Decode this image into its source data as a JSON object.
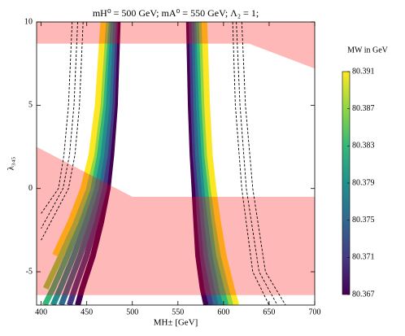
{
  "chart_data": {
    "type": "contour",
    "title": "mH⁰ = 500 GeV; mA⁰ = 550 GeV; Λ₂ = 1;",
    "x_label": "MH± [GeV]",
    "y_label": "λ₃₄₅",
    "xlim": [
      395,
      700
    ],
    "ylim": [
      -7,
      10
    ],
    "xticks": [
      400,
      450,
      500,
      550,
      600,
      650,
      700
    ],
    "yticks": [
      -5,
      0,
      5,
      10
    ],
    "contour_y": [
      10,
      5,
      2,
      0,
      -2,
      -4,
      -6,
      -7
    ],
    "contours": [
      {
        "color": "#440154",
        "left_x": [
          484,
          481,
          477,
          473,
          466,
          457,
          445,
          440
        ],
        "right_x": [
          562,
          564,
          566,
          568,
          570,
          572,
          577,
          581
        ]
      },
      {
        "color": "#443a83",
        "left_x": [
          481,
          478,
          473,
          469,
          460,
          450,
          437,
          431
        ],
        "right_x": [
          565,
          567,
          569,
          572,
          574,
          577,
          582,
          587
        ]
      },
      {
        "color": "#31688e",
        "left_x": [
          479,
          475,
          470,
          464,
          455,
          443,
          429,
          422
        ],
        "right_x": [
          568,
          570,
          572,
          575,
          578,
          581,
          588,
          592
        ]
      },
      {
        "color": "#21908d",
        "left_x": [
          476,
          472,
          466,
          460,
          449,
          436,
          421,
          413
        ],
        "right_x": [
          571,
          573,
          576,
          579,
          582,
          586,
          593,
          598
        ]
      },
      {
        "color": "#35b779",
        "left_x": [
          473,
          468,
          462,
          455,
          443,
          429,
          413,
          404
        ],
        "right_x": [
          573,
          576,
          579,
          582,
          586,
          591,
          598,
          603
        ]
      },
      {
        "color": "#8fd744",
        "left_x": [
          471,
          465,
          458,
          451,
          438,
          422,
          405,
          null
        ],
        "right_x": [
          576,
          579,
          582,
          586,
          590,
          595,
          604,
          609
        ]
      },
      {
        "color": "#fde725",
        "left_x": [
          468,
          462,
          455,
          446,
          432,
          415,
          null,
          null
        ],
        "right_x": [
          579,
          582,
          585,
          589,
          594,
          600,
          609,
          614
        ]
      }
    ],
    "regions": [
      {
        "x": [
          395,
          700,
          700,
          628,
          395
        ],
        "y": [
          10,
          10,
          7.2,
          8.7,
          8.7
        ]
      },
      {
        "x": [
          395,
          500,
          700,
          700,
          395
        ],
        "y": [
          2.5,
          -0.5,
          -0.5,
          -6.4,
          -6.4
        ]
      }
    ],
    "region_color": "#ff0000",
    "region_alpha": 0.28,
    "dashed_lines": [
      {
        "x": [
          434,
          430,
          425,
          419,
          400
        ],
        "y": [
          10,
          5,
          2,
          0,
          -1.5
        ]
      },
      {
        "x": [
          440,
          436,
          431,
          424,
          400
        ],
        "y": [
          10,
          5,
          2,
          0,
          -2.4
        ]
      },
      {
        "x": [
          446,
          442,
          437,
          430,
          400
        ],
        "y": [
          10,
          5,
          2,
          0,
          -3.1
        ]
      },
      {
        "x": [
          610,
          613,
          620,
          632,
          650
        ],
        "y": [
          10,
          5,
          0,
          -5,
          -7
        ]
      },
      {
        "x": [
          614,
          618,
          625,
          639,
          659
        ],
        "y": [
          10,
          5,
          0,
          -5,
          -7
        ]
      },
      {
        "x": [
          620,
          624,
          632,
          646,
          668
        ],
        "y": [
          10,
          5,
          0,
          -5,
          -7
        ]
      }
    ],
    "dashed_color": "#000000",
    "colorbar": {
      "label": "MW in GeV",
      "lim": [
        80.367,
        80.391
      ],
      "ticks": [
        80.367,
        80.371,
        80.375,
        80.379,
        80.383,
        80.387,
        80.391
      ]
    }
  }
}
